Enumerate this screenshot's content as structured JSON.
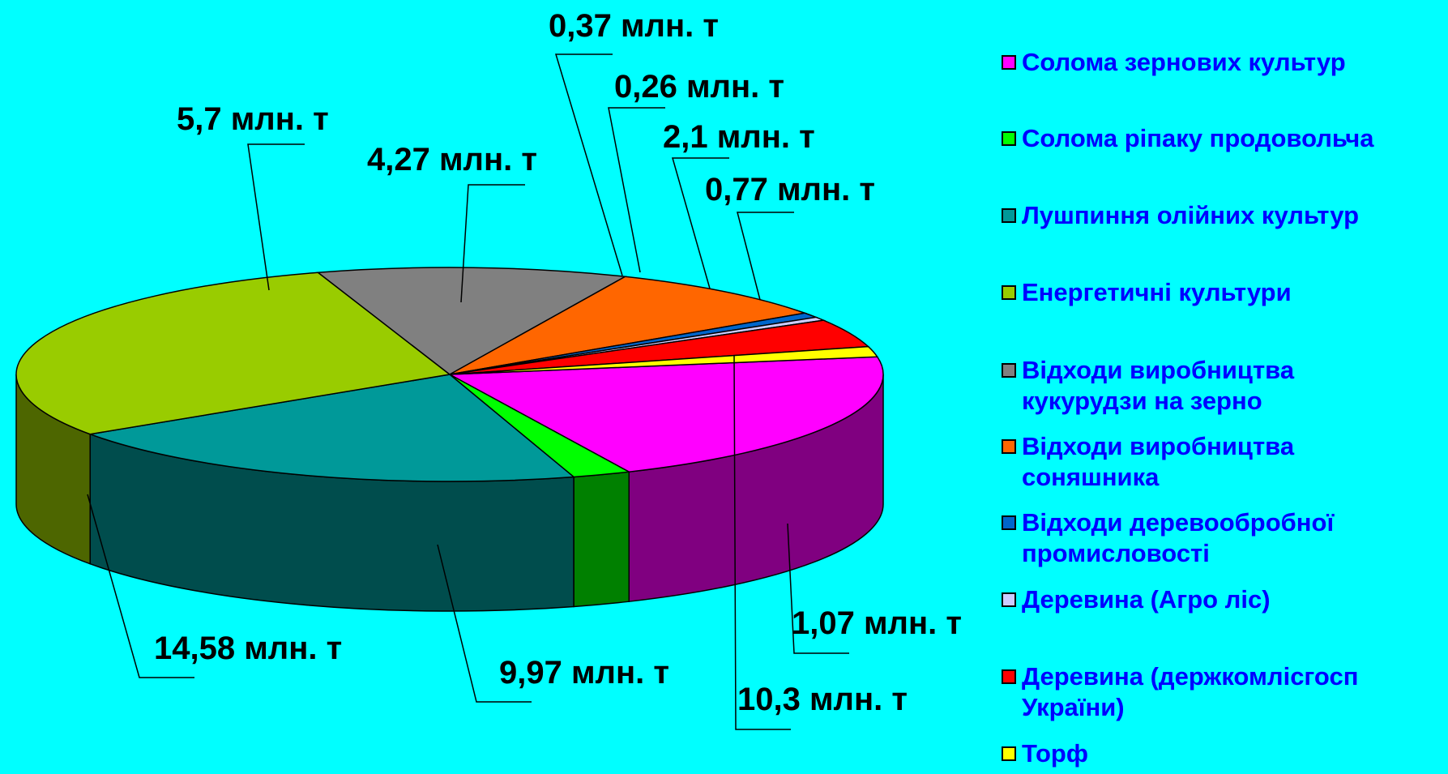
{
  "chart_data": {
    "type": "pie",
    "style": "3d-exploded-tilted",
    "unit": "млн. т",
    "slices": [
      {
        "name": "Солома зернових культур",
        "value": 10.3,
        "label": "10,3 млн. т",
        "color": "#FF00FF"
      },
      {
        "name": "Солома ріпаку продовольча",
        "value": 1.07,
        "label": "1,07 млн. т",
        "color": "#00FF00"
      },
      {
        "name": "Лушпиння олійних культур",
        "value": 9.97,
        "label": "9,97 млн. т",
        "color": "#009999"
      },
      {
        "name": "Енергетичні культури",
        "value": 14.58,
        "label": "14,58 млн. т",
        "color": "#99CC00"
      },
      {
        "name": "Відходи виробництва\nкукурудзи на зерно",
        "value": 5.7,
        "label": "5,7 млн. т",
        "color": "#808080"
      },
      {
        "name": "Відходи виробництва\nсоняшника",
        "value": 4.27,
        "label": "4,27 млн. т",
        "color": "#FF6600"
      },
      {
        "name": "Відходи деревообробної\nпромисловості",
        "value": 0.37,
        "label": "0,37 млн. т",
        "color": "#0066CC"
      },
      {
        "name": "Деревина (Агро ліс)",
        "value": 0.26,
        "label": "0,26 млн. т",
        "color": "#CCCCFF"
      },
      {
        "name": "Деревина (держкомлісгосп\nУкраїни)",
        "value": 2.1,
        "label": "2,1 млн. т",
        "color": "#FF0000"
      },
      {
        "name": "Торф",
        "value": 0.77,
        "label": "0,77 млн. т",
        "color": "#FFFF00"
      }
    ],
    "legend_position": "right",
    "legend_text_color": "#0000FF",
    "background_color": "#00FFFF"
  }
}
